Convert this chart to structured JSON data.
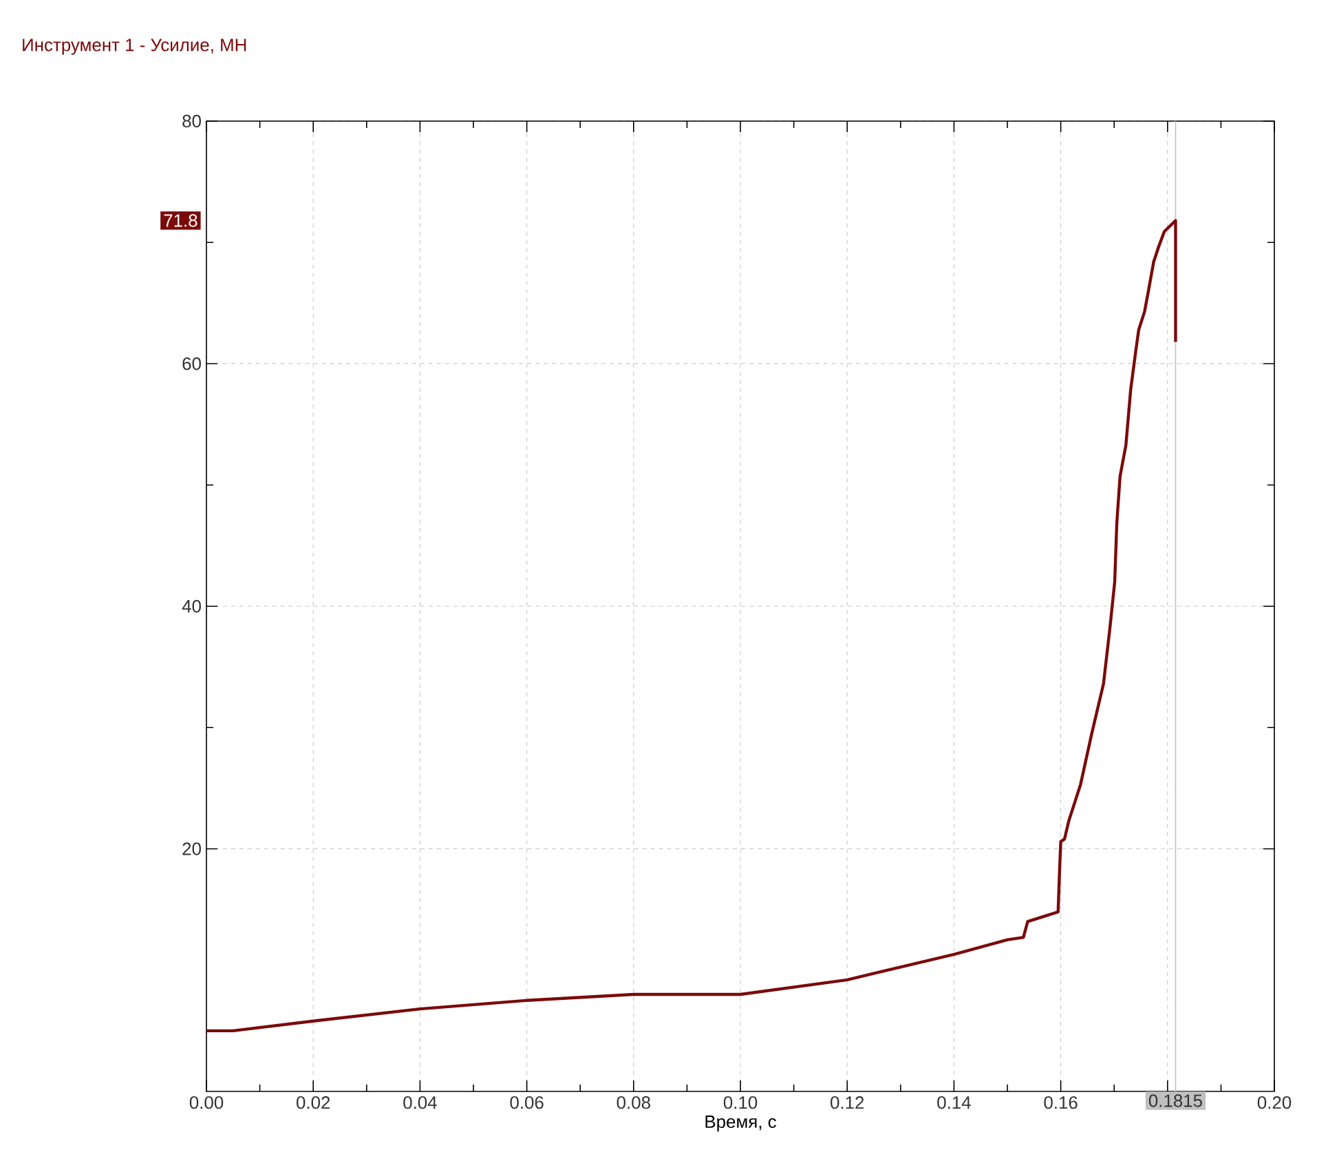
{
  "chart_data": {
    "type": "line",
    "title": "Инструмент 1 - Усилие, МН",
    "xlabel": "Время, с",
    "x": [
      0.0,
      0.005,
      0.02,
      0.04,
      0.06,
      0.08,
      0.1,
      0.12,
      0.14,
      0.15,
      0.153,
      0.1538,
      0.1595,
      0.1598,
      0.16,
      0.1607,
      0.1615,
      0.1637,
      0.1658,
      0.168,
      0.1692,
      0.1701,
      0.1705,
      0.1711,
      0.1722,
      0.1731,
      0.174,
      0.1746,
      0.1757,
      0.1765,
      0.1774,
      0.1783,
      0.1794,
      0.1815,
      0.1815
    ],
    "series": [
      {
        "color": "#7b0a0a",
        "values": [
          5.0,
          5.0,
          5.8,
          6.8,
          7.5,
          8.0,
          8.0,
          9.2,
          11.3,
          12.5,
          12.7,
          14.0,
          14.8,
          18.5,
          20.6,
          20.8,
          22.3,
          25.3,
          29.5,
          33.6,
          38.2,
          42.0,
          46.9,
          50.7,
          53.3,
          57.9,
          60.9,
          62.8,
          64.3,
          66.2,
          68.4,
          69.6,
          70.9,
          71.8,
          61.8
        ]
      }
    ],
    "xlim": [
      0,
      0.2
    ],
    "ylim": [
      0,
      80
    ],
    "xticks": [
      {
        "value": 0,
        "label": "0.00"
      },
      {
        "value": 0.02,
        "label": "0.02"
      },
      {
        "value": 0.04,
        "label": "0.04"
      },
      {
        "value": 0.06,
        "label": "0.06"
      },
      {
        "value": 0.08,
        "label": "0.08"
      },
      {
        "value": 0.1,
        "label": "0.10"
      },
      {
        "value": 0.12,
        "label": "0.12"
      },
      {
        "value": 0.14,
        "label": "0.14"
      },
      {
        "value": 0.16,
        "label": "0.16"
      },
      {
        "value": 0.18,
        "label": null
      },
      {
        "value": 0.2,
        "label": "0.20"
      }
    ],
    "yticks": [
      20,
      40,
      60,
      80
    ],
    "grid": true,
    "ref_lines": [
      {
        "axis": "x",
        "value": 0.1815,
        "label": "0.1815",
        "color": "#c0c0c0"
      }
    ],
    "annotations": [
      "71.8"
    ]
  }
}
